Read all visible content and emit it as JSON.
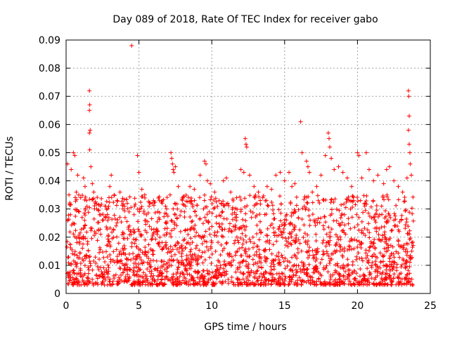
{
  "chart_data": {
    "type": "scatter",
    "title": "Day 089 of 2018, Rate Of TEC Index for receiver gabo",
    "xlabel": "GPS time / hours",
    "ylabel": "ROTI / TECUs",
    "xlim": [
      0,
      25
    ],
    "ylim": [
      0,
      0.09
    ],
    "xticks": [
      "0",
      "5",
      "10",
      "15",
      "20",
      "25"
    ],
    "yticks": [
      "0",
      "0.01",
      "0.02",
      "0.03",
      "0.04",
      "0.05",
      "0.06",
      "0.07",
      "0.08",
      "0.09"
    ],
    "grid": true,
    "marker": "+",
    "color": "#ff0000",
    "series": [
      {
        "points": [
          [
            0.1,
            0.046
          ],
          [
            0.2,
            0.035
          ],
          [
            0.3,
            0.028
          ],
          [
            0.35,
            0.044
          ],
          [
            0.5,
            0.05
          ],
          [
            0.6,
            0.049
          ],
          [
            0.7,
            0.036
          ],
          [
            0.8,
            0.042
          ],
          [
            0.9,
            0.029
          ],
          [
            1.0,
            0.034
          ],
          [
            1.1,
            0.027
          ],
          [
            1.2,
            0.041
          ],
          [
            1.3,
            0.038
          ],
          [
            1.4,
            0.033
          ],
          [
            1.6,
            0.072
          ],
          [
            1.62,
            0.067
          ],
          [
            1.6,
            0.065
          ],
          [
            1.65,
            0.058
          ],
          [
            1.6,
            0.057
          ],
          [
            1.62,
            0.051
          ],
          [
            1.7,
            0.045
          ],
          [
            1.8,
            0.039
          ],
          [
            1.9,
            0.036
          ],
          [
            2.1,
            0.03
          ],
          [
            2.3,
            0.028
          ],
          [
            2.5,
            0.026
          ],
          [
            2.7,
            0.031
          ],
          [
            3.0,
            0.038
          ],
          [
            3.1,
            0.042
          ],
          [
            3.3,
            0.035
          ],
          [
            3.5,
            0.033
          ],
          [
            3.7,
            0.036
          ],
          [
            3.9,
            0.03
          ],
          [
            4.2,
            0.032
          ],
          [
            4.5,
            0.088
          ],
          [
            4.7,
            0.031
          ],
          [
            4.9,
            0.049
          ],
          [
            5.0,
            0.043
          ],
          [
            5.2,
            0.037
          ],
          [
            5.4,
            0.035
          ],
          [
            5.7,
            0.031
          ],
          [
            6.0,
            0.033
          ],
          [
            6.3,
            0.029
          ],
          [
            6.6,
            0.032
          ],
          [
            6.9,
            0.03
          ],
          [
            7.2,
            0.05
          ],
          [
            7.25,
            0.048
          ],
          [
            7.3,
            0.046
          ],
          [
            7.35,
            0.044
          ],
          [
            7.4,
            0.043
          ],
          [
            7.5,
            0.045
          ],
          [
            7.7,
            0.038
          ],
          [
            8.0,
            0.034
          ],
          [
            8.2,
            0.031
          ],
          [
            8.5,
            0.038
          ],
          [
            8.8,
            0.037
          ],
          [
            9.2,
            0.042
          ],
          [
            9.5,
            0.047
          ],
          [
            9.6,
            0.046
          ],
          [
            9.7,
            0.04
          ],
          [
            9.9,
            0.039
          ],
          [
            10.2,
            0.036
          ],
          [
            10.5,
            0.033
          ],
          [
            10.8,
            0.04
          ],
          [
            11.0,
            0.041
          ],
          [
            11.3,
            0.036
          ],
          [
            11.7,
            0.034
          ],
          [
            12.0,
            0.044
          ],
          [
            12.2,
            0.043
          ],
          [
            12.3,
            0.055
          ],
          [
            12.35,
            0.053
          ],
          [
            12.4,
            0.052
          ],
          [
            12.6,
            0.042
          ],
          [
            12.9,
            0.038
          ],
          [
            13.2,
            0.036
          ],
          [
            13.5,
            0.034
          ],
          [
            13.8,
            0.038
          ],
          [
            14.1,
            0.037
          ],
          [
            14.4,
            0.042
          ],
          [
            14.7,
            0.043
          ],
          [
            15.0,
            0.04
          ],
          [
            15.3,
            0.043
          ],
          [
            15.5,
            0.038
          ],
          [
            15.7,
            0.039
          ],
          [
            16.1,
            0.061
          ],
          [
            16.2,
            0.05
          ],
          [
            16.5,
            0.047
          ],
          [
            16.6,
            0.045
          ],
          [
            16.7,
            0.043
          ],
          [
            16.9,
            0.036
          ],
          [
            17.2,
            0.038
          ],
          [
            17.5,
            0.042
          ],
          [
            17.8,
            0.049
          ],
          [
            18.0,
            0.057
          ],
          [
            18.05,
            0.055
          ],
          [
            18.1,
            0.052
          ],
          [
            18.2,
            0.048
          ],
          [
            18.4,
            0.044
          ],
          [
            18.7,
            0.045
          ],
          [
            19.0,
            0.043
          ],
          [
            19.3,
            0.041
          ],
          [
            19.6,
            0.038
          ],
          [
            20.0,
            0.05
          ],
          [
            20.1,
            0.049
          ],
          [
            20.3,
            0.041
          ],
          [
            20.6,
            0.05
          ],
          [
            20.8,
            0.044
          ],
          [
            21.1,
            0.04
          ],
          [
            21.4,
            0.042
          ],
          [
            21.8,
            0.039
          ],
          [
            22.0,
            0.044
          ],
          [
            22.2,
            0.045
          ],
          [
            22.5,
            0.04
          ],
          [
            22.8,
            0.038
          ],
          [
            23.1,
            0.036
          ],
          [
            23.4,
            0.041
          ],
          [
            23.5,
            0.072
          ],
          [
            23.52,
            0.07
          ],
          [
            23.55,
            0.063
          ],
          [
            23.5,
            0.058
          ],
          [
            23.55,
            0.053
          ],
          [
            23.6,
            0.05
          ],
          [
            23.62,
            0.046
          ],
          [
            23.7,
            0.042
          ]
        ]
      }
    ]
  }
}
